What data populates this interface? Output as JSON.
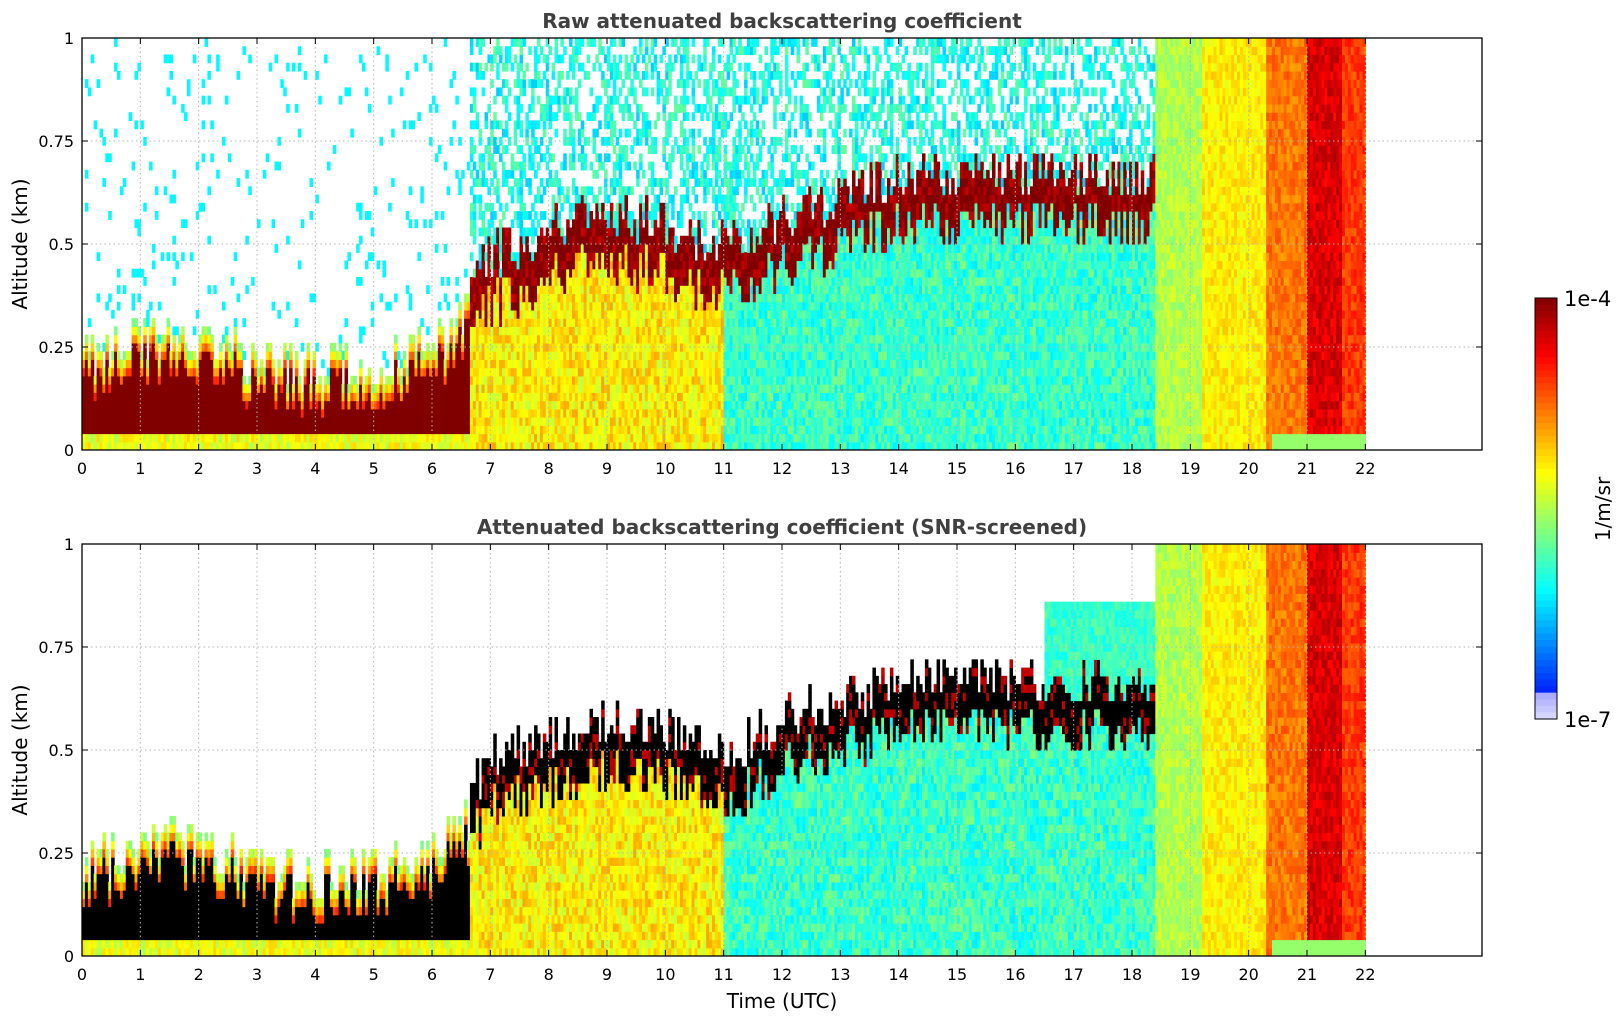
{
  "chart_data": [
    {
      "type": "heatmap",
      "title": "Raw attenuated backscattering coefficient",
      "xlabel": "",
      "ylabel": "Altitude (km)",
      "xlim": [
        0,
        24
      ],
      "ylim": [
        0,
        1
      ],
      "x_ticks": [
        0,
        1,
        2,
        3,
        4,
        5,
        6,
        7,
        8,
        9,
        10,
        11,
        12,
        13,
        14,
        15,
        16,
        17,
        18,
        19,
        20,
        21,
        22
      ],
      "y_ticks": [
        0,
        0.25,
        0.5,
        0.75,
        1
      ],
      "y_tick_labels": [
        "0",
        "0.25",
        "0.5",
        "0.75",
        "1"
      ],
      "grid": true,
      "data_extent_hours": [
        0,
        22
      ],
      "colorscale": "jet",
      "layers": [
        {
          "name": "boundary layer aerosol",
          "time": [
            0,
            1,
            2,
            3,
            4,
            5,
            6,
            6.5,
            7,
            8,
            9,
            10,
            11,
            12,
            13,
            14
          ],
          "top_km": [
            0.22,
            0.26,
            0.27,
            0.2,
            0.19,
            0.2,
            0.24,
            0.3,
            0.4,
            0.47,
            0.5,
            0.48,
            0.42,
            0.5,
            0.55,
            0.6
          ],
          "log10_value": -4.0
        },
        {
          "name": "surface layer",
          "time": [
            0,
            6.6,
            18.4
          ],
          "top_km": [
            0.03,
            0.03,
            0.02
          ],
          "log10_value": -5.7
        }
      ],
      "bands": [
        {
          "time_start": 18.4,
          "time_end": 19.2,
          "log10_value": -5.5
        },
        {
          "time_start": 19.2,
          "time_end": 20.3,
          "log10_value": -5.2
        },
        {
          "time_start": 20.3,
          "time_end": 21.0,
          "log10_value": -4.8
        },
        {
          "time_start": 21.0,
          "time_end": 21.6,
          "log10_value": -4.3
        },
        {
          "time_start": 21.6,
          "time_end": 22.0,
          "log10_value": -4.6
        }
      ]
    },
    {
      "type": "heatmap",
      "title": "Attenuated backscattering coefficient (SNR-screened)",
      "xlabel": "Time (UTC)",
      "ylabel": "Altitude (km)",
      "xlim": [
        0,
        24
      ],
      "ylim": [
        0,
        1
      ],
      "x_ticks": [
        0,
        1,
        2,
        3,
        4,
        5,
        6,
        7,
        8,
        9,
        10,
        11,
        12,
        13,
        14,
        15,
        16,
        17,
        18,
        19,
        20,
        21,
        22
      ],
      "y_ticks": [
        0,
        0.25,
        0.5,
        0.75,
        1
      ],
      "y_tick_labels": [
        "0",
        "0.25",
        "0.5",
        "0.75",
        "1"
      ],
      "grid": true,
      "data_extent_hours": [
        0,
        22
      ],
      "colorscale": "jet",
      "saturated_color": "#000000"
    }
  ],
  "colorbar": {
    "label": "1/m/sr",
    "max_label": "1e-4",
    "min_label": "1e-7",
    "scale": "log",
    "range": [
      1e-07,
      0.0001
    ]
  }
}
